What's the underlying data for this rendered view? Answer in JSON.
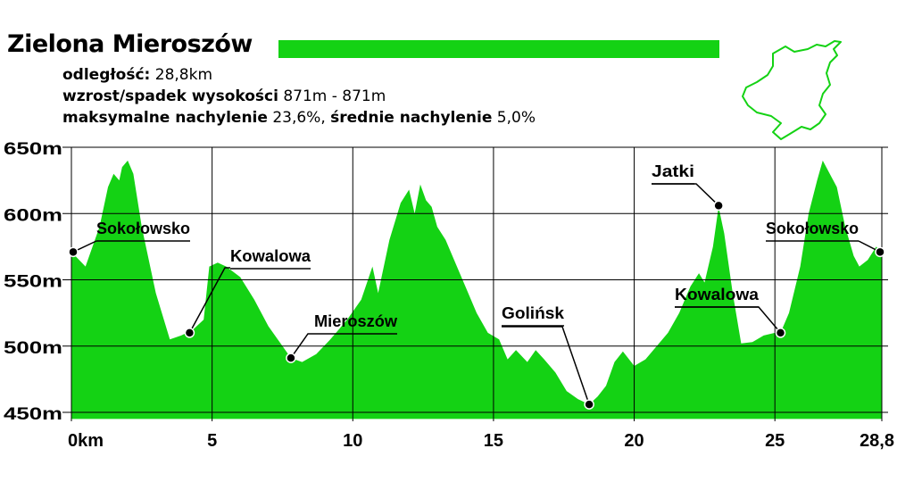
{
  "header": {
    "title": "Zielona Mieroszów",
    "title_bar_color": "#14d214",
    "stats": [
      {
        "label": "odległość:",
        "value": " 28,8km"
      },
      {
        "label": "wzrost/spadek wysokości",
        "value": " 871m - 871m"
      },
      {
        "label": "maksymalne nachylenie",
        "value": " 23,6%, ",
        "label2": "średnie nachylenie",
        "value2": " 5,0%"
      }
    ]
  },
  "route_map": {
    "icon": "route-outline-icon",
    "color": "#14d214"
  },
  "chart_data": {
    "type": "area",
    "fill_color": "#14d214",
    "xlim": [
      0,
      28.8
    ],
    "ylim": [
      450,
      650
    ],
    "x_ticks": [
      0,
      5,
      10,
      15,
      20,
      25,
      28.8
    ],
    "x_tick_labels": [
      "0km",
      "5",
      "10",
      "15",
      "20",
      "25",
      "28,8"
    ],
    "y_ticks": [
      450,
      500,
      550,
      600,
      650
    ],
    "y_tick_labels": [
      "450m",
      "500m",
      "550m",
      "600m",
      "650m"
    ],
    "grid": true,
    "profile": {
      "x": [
        0,
        0.5,
        1.0,
        1.3,
        1.5,
        1.7,
        1.8,
        2.0,
        2.2,
        2.5,
        3.0,
        3.5,
        3.9,
        4.3,
        4.7,
        4.9,
        5.2,
        5.5,
        6.0,
        6.5,
        7.0,
        7.5,
        7.8,
        8.2,
        8.7,
        9.2,
        9.8,
        10.3,
        10.7,
        10.9,
        11.3,
        11.7,
        12.0,
        12.2,
        12.4,
        12.6,
        12.8,
        13.0,
        13.3,
        13.6,
        14.0,
        14.4,
        14.8,
        15.2,
        15.5,
        15.8,
        16.2,
        16.5,
        16.8,
        17.2,
        17.6,
        18.0,
        18.2,
        18.4,
        18.7,
        19.0,
        19.3,
        19.6,
        20.0,
        20.4,
        20.8,
        21.2,
        21.6,
        22.0,
        22.3,
        22.5,
        22.8,
        23.0,
        23.2,
        23.5,
        23.8,
        24.2,
        24.6,
        25.0,
        25.2,
        25.5,
        25.9,
        26.2,
        26.5,
        26.7,
        26.9,
        27.2,
        27.5,
        27.8,
        28.0,
        28.3,
        28.6,
        28.8
      ],
      "y": [
        571,
        560,
        590,
        620,
        630,
        625,
        635,
        640,
        630,
        590,
        540,
        505,
        508,
        512,
        520,
        560,
        563,
        560,
        552,
        535,
        515,
        500,
        491,
        488,
        494,
        505,
        520,
        535,
        560,
        540,
        580,
        608,
        618,
        600,
        622,
        610,
        605,
        590,
        580,
        565,
        545,
        525,
        510,
        505,
        490,
        497,
        488,
        497,
        490,
        480,
        466,
        460,
        458,
        456,
        462,
        470,
        488,
        496,
        485,
        490,
        500,
        510,
        525,
        545,
        555,
        548,
        575,
        605,
        585,
        540,
        502,
        503,
        508,
        510,
        510,
        525,
        560,
        600,
        625,
        640,
        632,
        620,
        590,
        568,
        560,
        565,
        575,
        571
      ]
    },
    "annotations": [
      {
        "label": "Sokołowsko",
        "x": 0,
        "y": 571
      },
      {
        "label": "Kowalowa",
        "x": 4.2,
        "y": 510
      },
      {
        "label": "Mieroszów",
        "x": 7.8,
        "y": 491
      },
      {
        "label": "Golińsk",
        "x": 18.4,
        "y": 456
      },
      {
        "label": "Jatki",
        "x": 23.0,
        "y": 606
      },
      {
        "label": "Kowalowa",
        "x": 25.2,
        "y": 510
      },
      {
        "label": "Sokołowsko",
        "x": 28.8,
        "y": 571
      }
    ]
  }
}
